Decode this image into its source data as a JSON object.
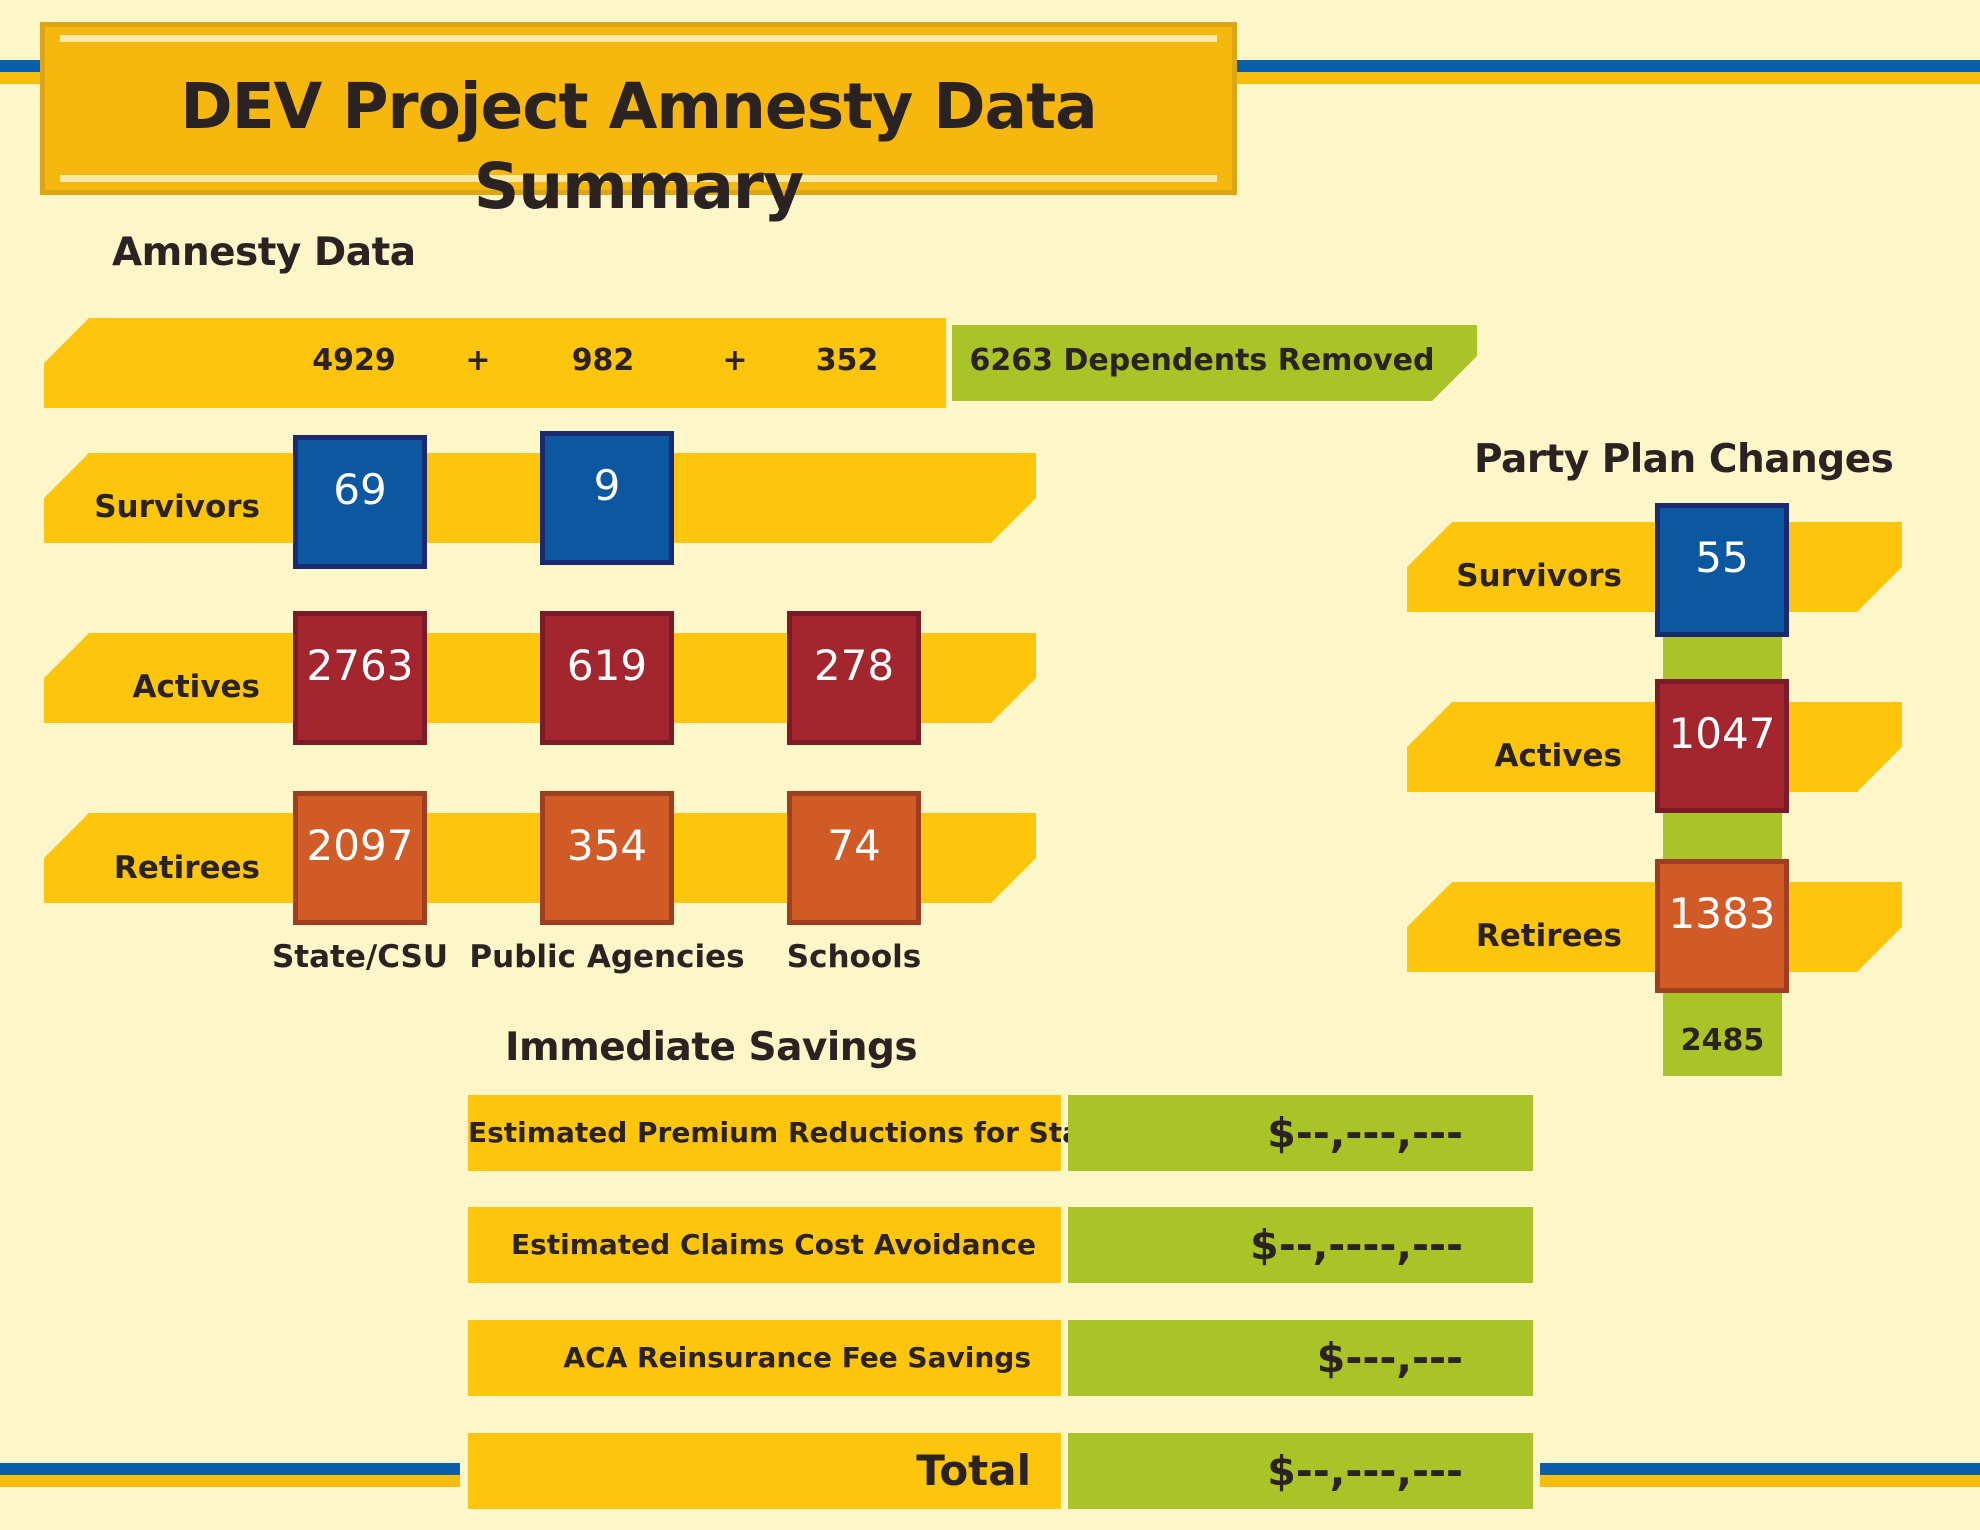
{
  "title": "DEV Project Amnesty Data Summary",
  "amnesty": {
    "heading": "Amnesty Data",
    "totals": {
      "state": "4929",
      "plus1": "+",
      "public": "982",
      "plus2": "+",
      "schools": "352"
    },
    "removed_banner": "6263 Dependents Removed",
    "rows": {
      "survivors": {
        "label": "Survivors",
        "state": "69",
        "public": "9"
      },
      "actives": {
        "label": "Actives",
        "state": "2763",
        "public": "619",
        "schools": "278"
      },
      "retirees": {
        "label": "Retirees",
        "state": "2097",
        "public": "354",
        "schools": "74"
      }
    },
    "columns": {
      "state": "State/CSU",
      "public": "Public Agencies",
      "schools": "Schools"
    }
  },
  "party_plan": {
    "heading": "Party Plan Changes",
    "survivors": {
      "label": "Survivors",
      "value": "55"
    },
    "actives": {
      "label": "Actives",
      "value": "1047"
    },
    "retirees": {
      "label": "Retirees",
      "value": "1383"
    },
    "total": "2485"
  },
  "savings": {
    "heading": "Immediate Savings",
    "rows": [
      {
        "label": "Estimated Premium Reductions for State",
        "value": "$--,---,---"
      },
      {
        "label": "Estimated Claims Cost Avoidance",
        "value": "$--,----,---"
      },
      {
        "label": "ACA Reinsurance Fee Savings",
        "value": "$---,---"
      }
    ],
    "total": {
      "label": "Total",
      "value": "$--,---,---"
    }
  },
  "colors": {
    "background": "#fdf6c9",
    "band_yellow": "#fdc60c",
    "green": "#aac326",
    "survivor_blue": "#0b57a0",
    "active_red": "#a3262f",
    "retiree_orange": "#d05b27",
    "stripe_blue": "#0a5fa6"
  }
}
